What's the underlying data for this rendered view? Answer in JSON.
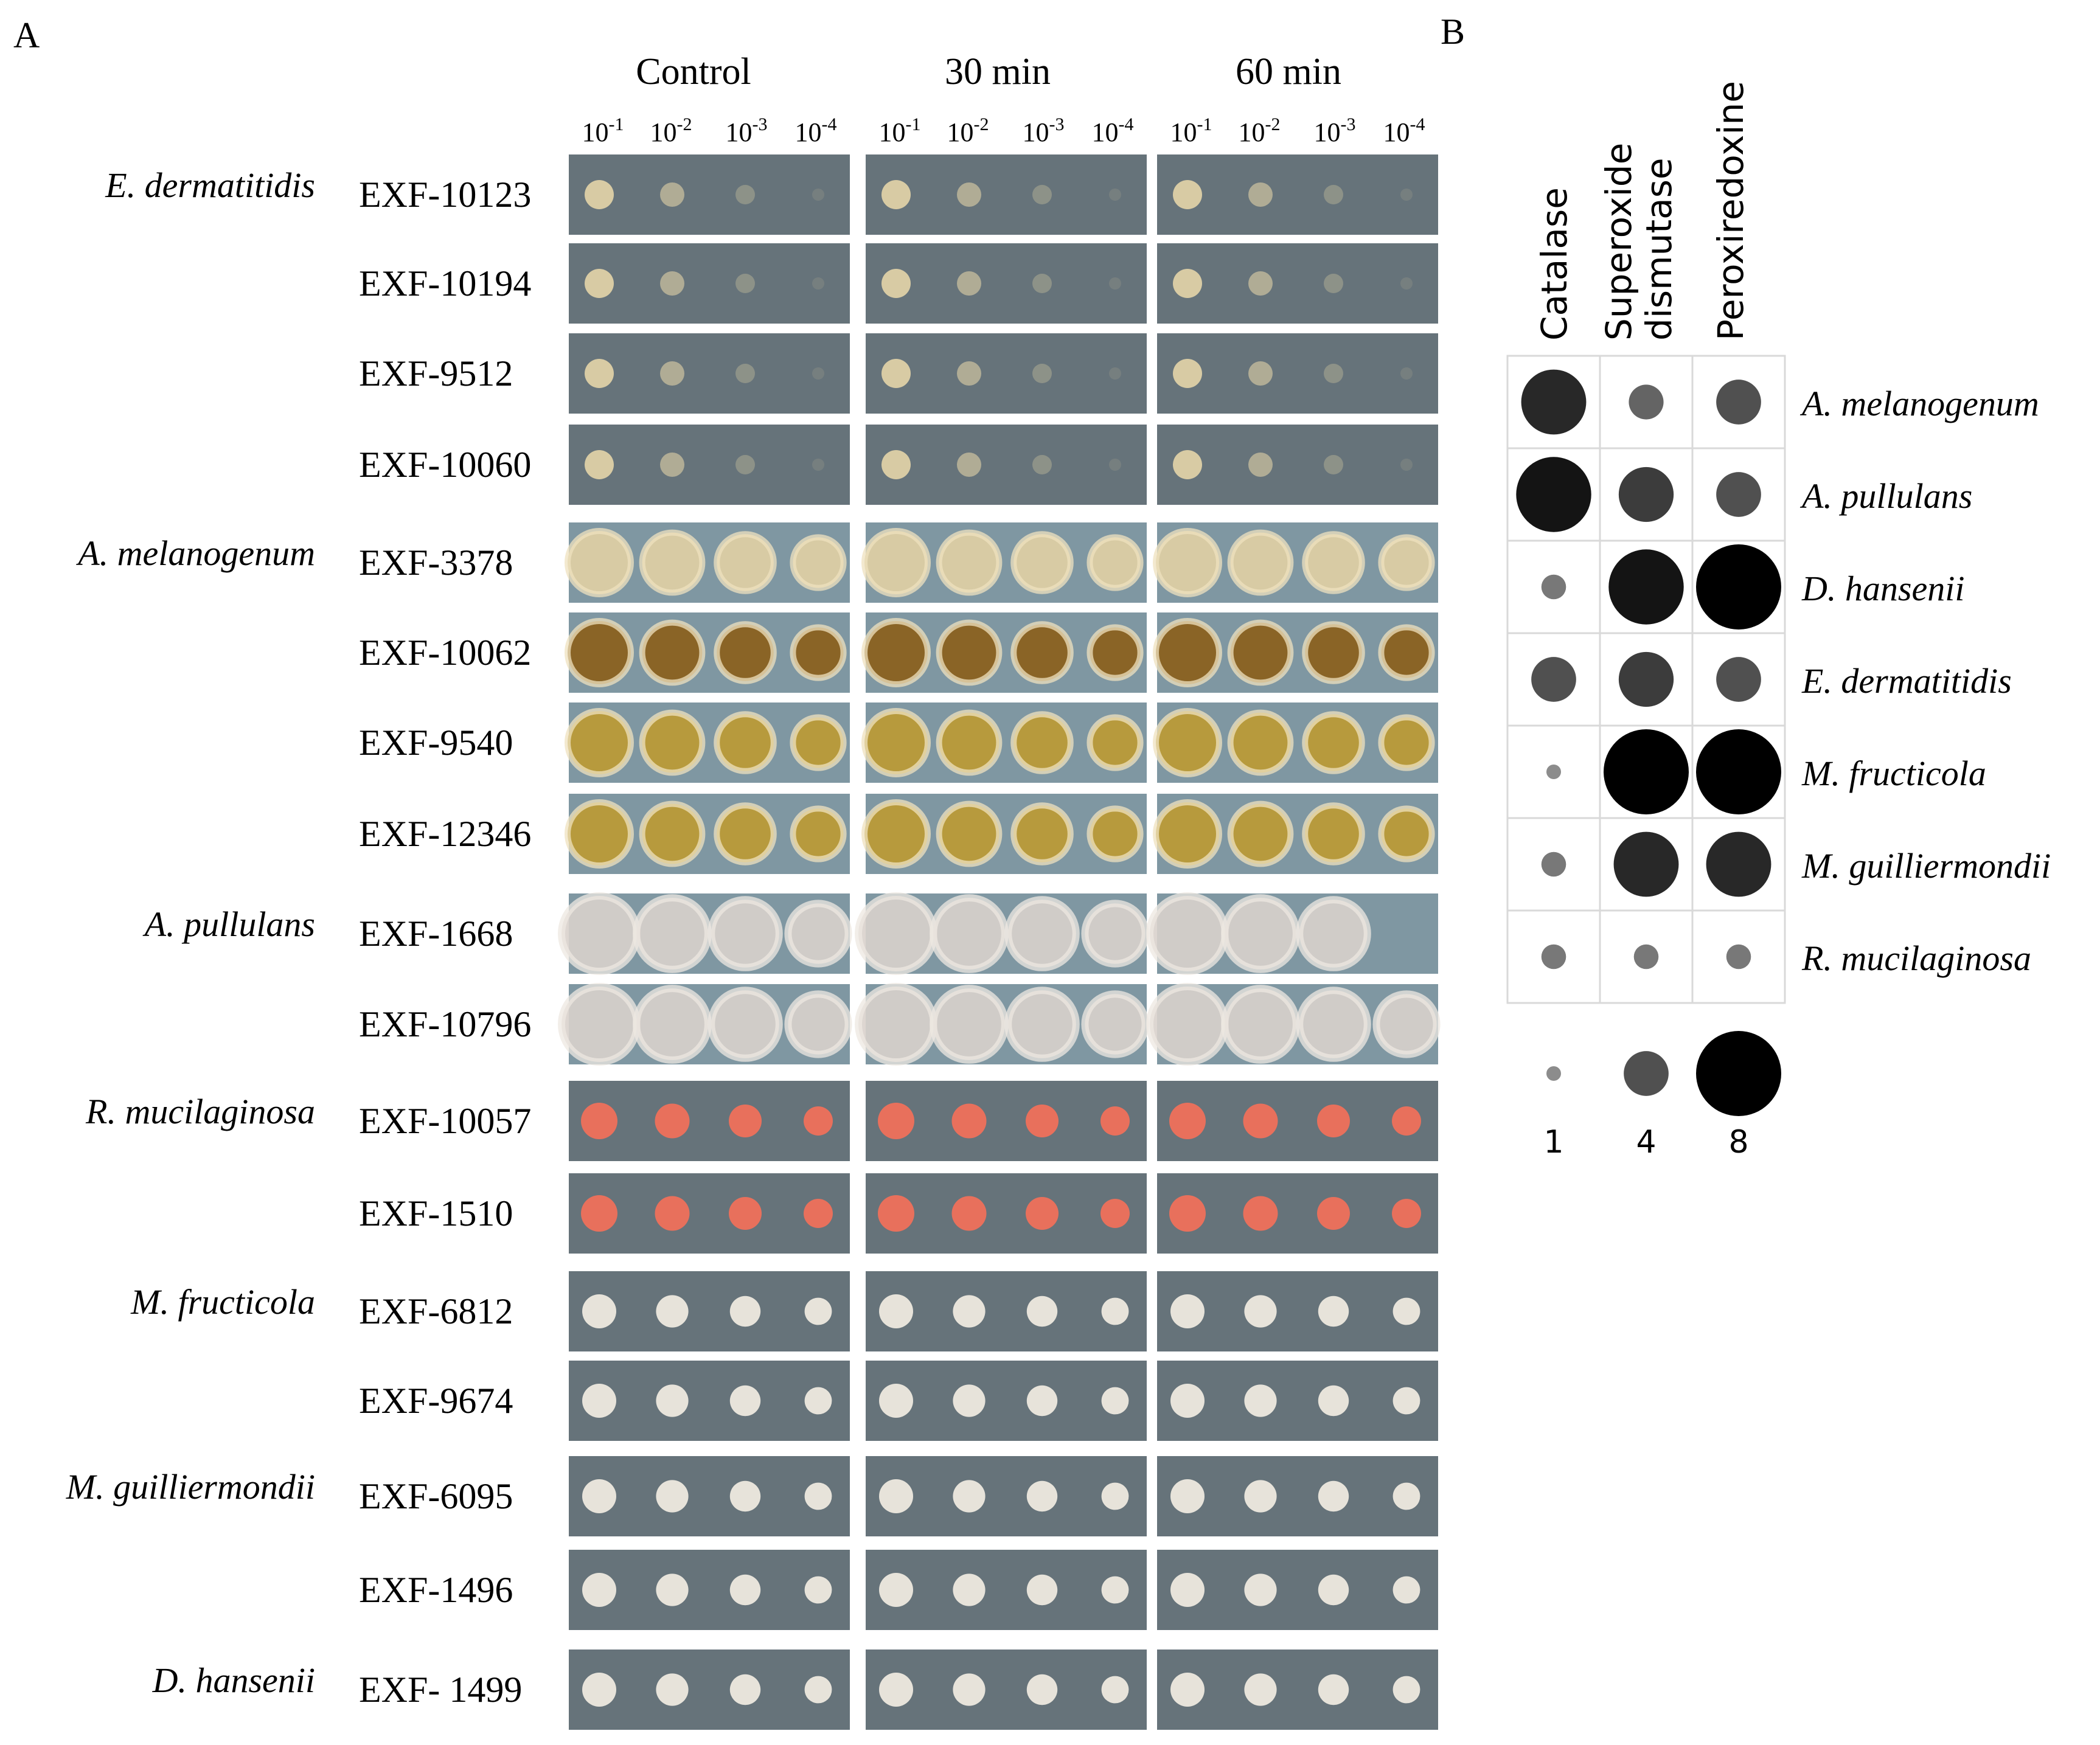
{
  "panel_a": {
    "label": "A",
    "conditions": [
      "Control",
      "30 min",
      "60 min"
    ],
    "dilutions": [
      {
        "base": "10",
        "exp": "-1"
      },
      {
        "base": "10",
        "exp": "-2"
      },
      {
        "base": "10",
        "exp": "-3"
      },
      {
        "base": "10",
        "exp": "-4"
      }
    ],
    "species_groups": [
      {
        "species": "E. dermatitidis",
        "strains": [
          "EXF-10123",
          "EXF-10194",
          "EXF-9512",
          "EXF-10060"
        ],
        "colony": "dermatitidis"
      },
      {
        "species": "A. melanogenum",
        "strains": [
          "EXF-3378",
          "EXF-10062",
          "EXF-9540",
          "EXF-12346"
        ],
        "colony": "melanogenum"
      },
      {
        "species": "A. pullulans",
        "strains": [
          "EXF-1668",
          "EXF-10796"
        ],
        "colony": "pullulans"
      },
      {
        "species": "R. mucilaginosa",
        "strains": [
          "EXF-10057",
          "EXF-1510"
        ],
        "colony": "mucilaginosa"
      },
      {
        "species": "M. fructicola",
        "strains": [
          "EXF-6812",
          "EXF-9674"
        ],
        "colony": "white"
      },
      {
        "species": "M. guilliermondii",
        "strains": [
          "EXF-6095",
          "EXF-1496"
        ],
        "colony": "white"
      },
      {
        "species": "D. hansenii",
        "strains": [
          "EXF- 1499"
        ],
        "colony": "white"
      }
    ],
    "colors": {
      "plate_grey": "#66737a",
      "plate_blue": "#7f97a2",
      "colony_cream": "#d8cba4",
      "colony_white": "#e7e3da",
      "colony_red": "#e8705c",
      "colony_brown": "#8a6426",
      "colony_olive": "#b79a3d"
    }
  },
  "panel_b": {
    "label": "B",
    "columns": [
      "Catalase",
      "Superoxide\ndismutase",
      "Peroxiredoxine"
    ],
    "rows": [
      "A. melanogenum",
      "A. pullulans",
      "D. hansenii",
      "E. dermatitidis",
      "M. fructicola",
      "M. guilliermondii",
      "R. mucilaginosa"
    ],
    "legend": {
      "values": [
        1,
        4,
        8
      ],
      "labels": [
        "1",
        "4",
        "8"
      ]
    }
  },
  "chart_data": {
    "type": "bubble_matrix",
    "title": "",
    "categories_x": [
      "Catalase",
      "Superoxide dismutase",
      "Peroxiredoxine"
    ],
    "categories_y": [
      "A. melanogenum",
      "A. pullulans",
      "D. hansenii",
      "E. dermatitidis",
      "M. fructicola",
      "M. guilliermondii",
      "R. mucilaginosa"
    ],
    "values": [
      [
        6,
        3,
        4
      ],
      [
        7,
        5,
        4
      ],
      [
        2,
        7,
        8
      ],
      [
        4,
        5,
        4
      ],
      [
        1,
        8,
        8
      ],
      [
        2,
        6,
        6
      ],
      [
        2,
        2,
        2
      ]
    ],
    "size_legend": [
      1,
      4,
      8
    ],
    "value_encoding": "circle size and darkness (larger and darker = higher)"
  }
}
